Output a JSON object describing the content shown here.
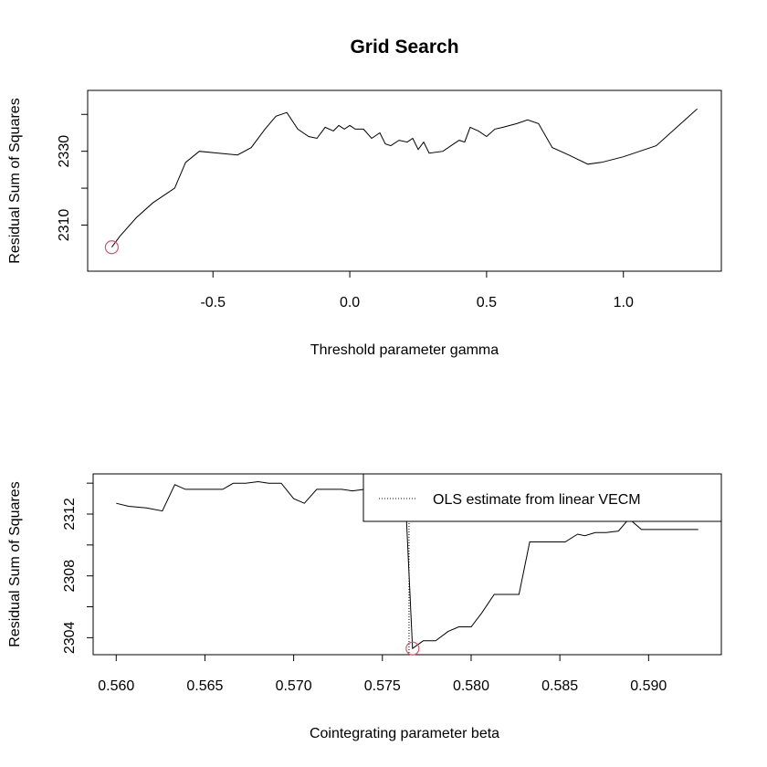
{
  "figure_title": "Grid Search",
  "chart_data": [
    {
      "type": "line",
      "xlabel": "Threshold parameter gamma",
      "ylabel": "Residual Sum of Squares",
      "xlim": [
        -0.958,
        1.358
      ],
      "ylim": [
        2297.5,
        2346.5
      ],
      "xticks": [
        -0.5,
        0.0,
        0.5,
        1.0
      ],
      "xtick_labels": [
        "-0.5",
        "0.0",
        "0.5",
        "1.0"
      ],
      "yticks": [
        2310,
        2320,
        2330,
        2340
      ],
      "ytick_labels": [
        "2310",
        "",
        "2330",
        ""
      ],
      "grid": false,
      "line_color": "#000000",
      "marker_color": "#df536b",
      "series": [
        {
          "x": [
            -0.87,
            -0.84,
            -0.78,
            -0.72,
            -0.64,
            -0.6,
            -0.55,
            -0.48,
            -0.41,
            -0.36,
            -0.31,
            -0.27,
            -0.23,
            -0.19,
            -0.15,
            -0.12,
            -0.09,
            -0.06,
            -0.04,
            -0.02,
            0.0,
            0.02,
            0.05,
            0.08,
            0.11,
            0.13,
            0.15,
            0.18,
            0.21,
            0.23,
            0.25,
            0.27,
            0.29,
            0.34,
            0.38,
            0.4,
            0.42,
            0.44,
            0.47,
            0.5,
            0.53,
            0.56,
            0.61,
            0.65,
            0.69,
            0.74,
            0.8,
            0.87,
            0.92,
            1.0,
            1.12,
            1.27
          ],
          "y": [
            2304,
            2307,
            2312,
            2316,
            2320,
            2327,
            2330,
            2329.5,
            2329,
            2331,
            2336,
            2339.5,
            2340.5,
            2336,
            2334,
            2333.5,
            2336.5,
            2335.5,
            2337,
            2336,
            2337,
            2336,
            2336,
            2333.5,
            2335,
            2332,
            2331.5,
            2333,
            2332.5,
            2333.5,
            2330.5,
            2332.5,
            2329.5,
            2330,
            2332,
            2333,
            2332.5,
            2336.5,
            2335.5,
            2334,
            2336,
            2336.5,
            2337.5,
            2338.5,
            2337.5,
            2331,
            2329,
            2326.5,
            2327,
            2328.5,
            2331.5,
            2341.5
          ]
        }
      ],
      "minimum": {
        "x": -0.87,
        "y": 2304
      }
    },
    {
      "type": "line",
      "xlabel": "Cointegrating parameter beta",
      "ylabel": "Residual Sum of Squares",
      "xlim": [
        0.5587,
        0.5941
      ],
      "ylim": [
        2302.9,
        2314.6
      ],
      "xticks": [
        0.56,
        0.565,
        0.57,
        0.575,
        0.58,
        0.585,
        0.59
      ],
      "xtick_labels": [
        "0.560",
        "0.565",
        "0.570",
        "0.575",
        "0.580",
        "0.585",
        "0.590"
      ],
      "yticks": [
        2304,
        2306,
        2308,
        2310,
        2312,
        2314
      ],
      "ytick_labels": [
        "2304",
        "",
        "2308",
        "",
        "2312",
        ""
      ],
      "grid": false,
      "line_color": "#000000",
      "marker_color": "#df536b",
      "series": [
        {
          "x": [
            0.56,
            0.5607,
            0.5617,
            0.5626,
            0.5633,
            0.5639,
            0.5646,
            0.5653,
            0.566,
            0.5666,
            0.5673,
            0.568,
            0.5686,
            0.5693,
            0.57,
            0.5706,
            0.5713,
            0.572,
            0.5727,
            0.5733,
            0.574,
            0.5747,
            0.5753,
            0.576,
            0.5763,
            0.5767,
            0.5773,
            0.578,
            0.5787,
            0.5793,
            0.58,
            0.5806,
            0.5813,
            0.582,
            0.5827,
            0.5833,
            0.584,
            0.5846,
            0.5853,
            0.586,
            0.5864,
            0.587,
            0.5876,
            0.5883,
            0.5889,
            0.5896,
            0.5903,
            0.5908,
            0.5913,
            0.5919,
            0.5928
          ],
          "y": [
            2312.7,
            2312.5,
            2312.4,
            2312.2,
            2313.9,
            2313.6,
            2313.6,
            2313.6,
            2313.6,
            2314.0,
            2314.0,
            2314.1,
            2314.0,
            2314.0,
            2313.0,
            2312.7,
            2313.6,
            2313.6,
            2313.6,
            2313.5,
            2313.6,
            2313.6,
            2313.6,
            2313.5,
            2313.0,
            2303.3,
            2303.8,
            2303.8,
            2304.4,
            2304.7,
            2304.7,
            2305.6,
            2306.8,
            2306.8,
            2306.8,
            2310.2,
            2310.2,
            2310.2,
            2310.2,
            2310.7,
            2310.6,
            2310.8,
            2310.8,
            2310.9,
            2311.7,
            2311.0,
            2311.0,
            2311.0,
            2311.0,
            2311.0,
            2311.0
          ]
        }
      ],
      "ols_estimate": {
        "x": 0.5765,
        "label": "OLS estimate from linear VECM"
      },
      "minimum": {
        "x": 0.5767,
        "y": 2303.3
      },
      "legend_placement": "top-right"
    }
  ]
}
